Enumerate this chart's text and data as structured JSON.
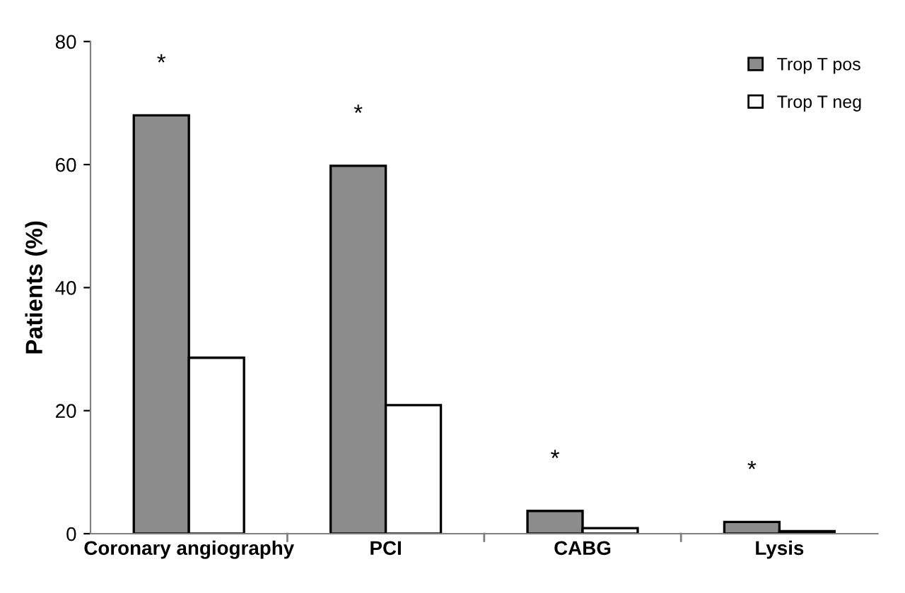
{
  "chart_data": {
    "type": "bar",
    "ylabel": "Patients (%)",
    "categories": [
      "Coronary angiography",
      "PCI",
      "CABG",
      "Lysis"
    ],
    "series": [
      {
        "name": "Trop T pos",
        "color": "#8c8c8c",
        "values": [
          68,
          59.8,
          3.7,
          1.9
        ]
      },
      {
        "name": "Trop T neg",
        "color": "#ffffff",
        "values": [
          28.6,
          20.9,
          0.9,
          0.4
        ]
      }
    ],
    "ylim": [
      0,
      80
    ],
    "yticks": [
      0,
      20,
      40,
      60,
      80
    ],
    "grid": false,
    "legend": "top right",
    "annotations": [
      "*",
      "*",
      "*",
      "*"
    ]
  }
}
